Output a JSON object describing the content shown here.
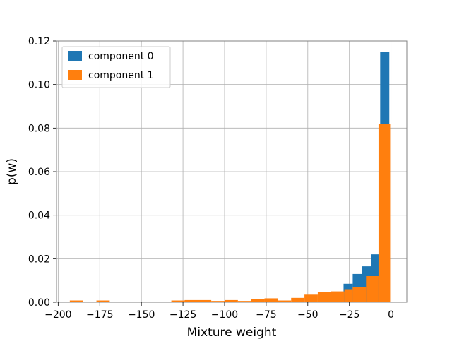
{
  "chart_data": {
    "type": "bar",
    "xlabel": "Mixture weight",
    "ylabel": "p(w)",
    "xlim": [
      -201,
      9.5
    ],
    "ylim": [
      0,
      0.12
    ],
    "xticks": [
      -200,
      -175,
      -150,
      -125,
      -100,
      -75,
      -50,
      -25,
      0
    ],
    "xtick_labels": [
      "−200",
      "−175",
      "−150",
      "−125",
      "−100",
      "−75",
      "−50",
      "−25",
      "0"
    ],
    "yticks": [
      0,
      0.02,
      0.04,
      0.06,
      0.08,
      0.1,
      0.12
    ],
    "ytick_labels": [
      "0.00",
      "0.02",
      "0.04",
      "0.06",
      "0.08",
      "0.10",
      "0.12"
    ],
    "grid": true,
    "legend_position": "top-left",
    "series": [
      {
        "name": "component 0",
        "color": "#1f77b4",
        "bins": [
          {
            "x0": -34.0,
            "x1": -28.5,
            "y": 0.0012
          },
          {
            "x0": -28.5,
            "x1": -23.0,
            "y": 0.0085
          },
          {
            "x0": -23.0,
            "x1": -17.5,
            "y": 0.013
          },
          {
            "x0": -17.5,
            "x1": -12.0,
            "y": 0.0165
          },
          {
            "x0": -12.0,
            "x1": -6.5,
            "y": 0.022
          },
          {
            "x0": -6.5,
            "x1": -1.0,
            "y": 0.115
          }
        ]
      },
      {
        "name": "component 1",
        "color": "#ff7f0e",
        "bins": [
          {
            "x0": -193.0,
            "x1": -185.0,
            "y": 0.0008
          },
          {
            "x0": -177.0,
            "x1": -169.0,
            "y": 0.0008
          },
          {
            "x0": -132.0,
            "x1": -124.0,
            "y": 0.0008
          },
          {
            "x0": -124.0,
            "x1": -116.0,
            "y": 0.001
          },
          {
            "x0": -116.0,
            "x1": -108.0,
            "y": 0.001
          },
          {
            "x0": -108.0,
            "x1": -100.0,
            "y": 0.0006
          },
          {
            "x0": -100.0,
            "x1": -92.0,
            "y": 0.001
          },
          {
            "x0": -92.0,
            "x1": -84.0,
            "y": 0.0006
          },
          {
            "x0": -84.0,
            "x1": -76.0,
            "y": 0.0016
          },
          {
            "x0": -76.0,
            "x1": -68.0,
            "y": 0.0018
          },
          {
            "x0": -68.0,
            "x1": -60.0,
            "y": 0.0008
          },
          {
            "x0": -60.0,
            "x1": -52.0,
            "y": 0.002
          },
          {
            "x0": -52.0,
            "x1": -44.0,
            "y": 0.0038
          },
          {
            "x0": -44.0,
            "x1": -36.0,
            "y": 0.0048
          },
          {
            "x0": -36.0,
            "x1": -28.0,
            "y": 0.005
          },
          {
            "x0": -28.0,
            "x1": -23.0,
            "y": 0.006
          },
          {
            "x0": -23.0,
            "x1": -15.0,
            "y": 0.007
          },
          {
            "x0": -15.0,
            "x1": -7.5,
            "y": 0.012
          },
          {
            "x0": -7.5,
            "x1": -0.5,
            "y": 0.082
          }
        ]
      }
    ]
  }
}
